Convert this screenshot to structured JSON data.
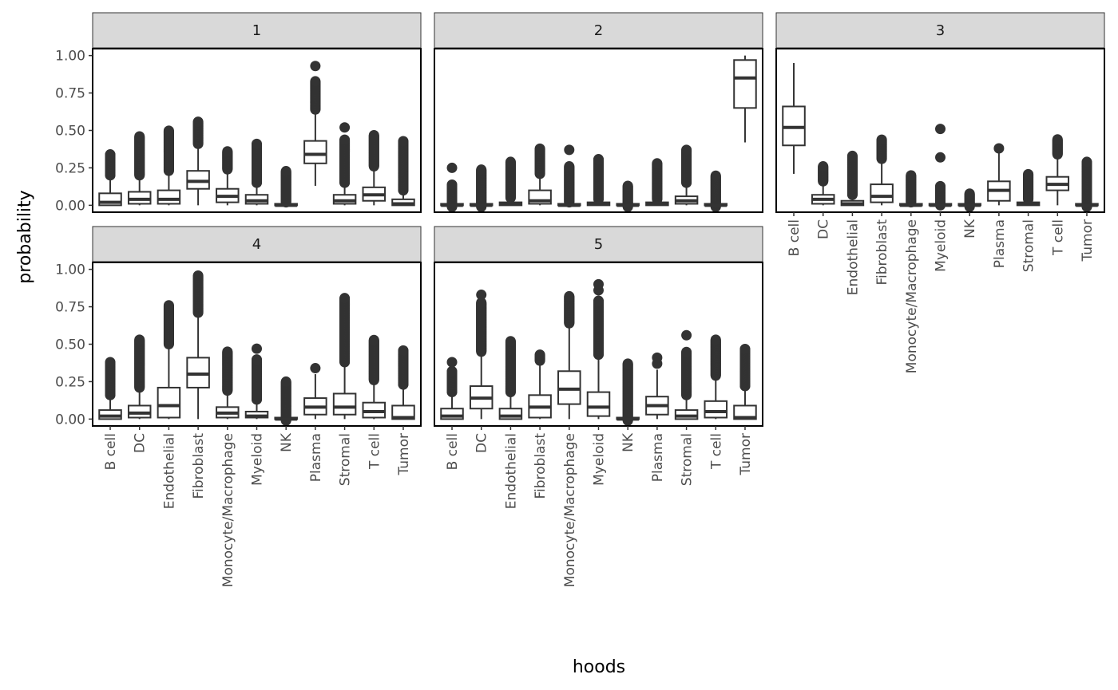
{
  "chart_data": {
    "type": "boxplot",
    "facet_variable_panels": [
      "1",
      "2",
      "3",
      "4",
      "5"
    ],
    "xlabel": "hoods",
    "ylabel": "probability",
    "ylim": [
      -0.046,
      1.046
    ],
    "yticks": [
      "0.00",
      "0.25",
      "0.50",
      "0.75",
      "1.00"
    ],
    "ytick_values": [
      0,
      0.25,
      0.5,
      0.75,
      1.0
    ],
    "categories": [
      "B cell",
      "DC",
      "Endothelial",
      "Fibroblast",
      "Monocyte/Macrophage",
      "Myeloid",
      "NK",
      "Plasma",
      "Stromal",
      "T cell",
      "Tumor"
    ],
    "colors": {
      "box_stroke": "#333333",
      "box_fill": "#ffffff",
      "strip_fill": "#d9d9d9",
      "panel_border": "#000000"
    },
    "grid": false,
    "facets": [
      {
        "label": "1",
        "boxes": [
          {
            "lower": 0.0,
            "q1": 0.0,
            "median": 0.02,
            "q3": 0.08,
            "upper": 0.19,
            "outlier_range": [
              0.2,
              0.34
            ]
          },
          {
            "lower": 0.0,
            "q1": 0.01,
            "median": 0.04,
            "q3": 0.09,
            "upper": 0.19,
            "outlier_range": [
              0.2,
              0.46
            ]
          },
          {
            "lower": 0.0,
            "q1": 0.01,
            "median": 0.04,
            "q3": 0.1,
            "upper": 0.22,
            "outlier_range": [
              0.23,
              0.5
            ]
          },
          {
            "lower": 0.0,
            "q1": 0.11,
            "median": 0.16,
            "q3": 0.23,
            "upper": 0.4,
            "outlier_range": [
              0.41,
              0.56
            ]
          },
          {
            "lower": 0.0,
            "q1": 0.02,
            "median": 0.06,
            "q3": 0.11,
            "upper": 0.23,
            "outlier_range": [
              0.24,
              0.36
            ]
          },
          {
            "lower": 0.0,
            "q1": 0.01,
            "median": 0.03,
            "q3": 0.07,
            "upper": 0.14,
            "outlier_range": [
              0.15,
              0.41
            ]
          },
          {
            "lower": 0.0,
            "q1": 0.0,
            "median": 0.0,
            "q3": 0.01,
            "upper": 0.02,
            "outlier_range": [
              0.02,
              0.23
            ]
          },
          {
            "lower": 0.13,
            "q1": 0.28,
            "median": 0.34,
            "q3": 0.43,
            "upper": 0.63,
            "outlier_range": [
              0.64,
              0.83
            ],
            "outliers": [
              0.93
            ]
          },
          {
            "lower": 0.0,
            "q1": 0.01,
            "median": 0.03,
            "q3": 0.07,
            "upper": 0.14,
            "outlier_range": [
              0.15,
              0.44
            ],
            "outliers": [
              0.52
            ]
          },
          {
            "lower": 0.0,
            "q1": 0.03,
            "median": 0.07,
            "q3": 0.12,
            "upper": 0.25,
            "outlier_range": [
              0.26,
              0.47
            ]
          },
          {
            "lower": 0.0,
            "q1": 0.0,
            "median": 0.01,
            "q3": 0.04,
            "upper": 0.1,
            "outlier_range": [
              0.1,
              0.43
            ]
          }
        ]
      },
      {
        "label": "2",
        "boxes": [
          {
            "lower": 0.0,
            "q1": 0.0,
            "median": 0.0,
            "q3": 0.01,
            "upper": 0.02,
            "outlier_range": [
              -0.01,
              0.14
            ],
            "outliers": [
              0.25
            ]
          },
          {
            "lower": 0.0,
            "q1": 0.0,
            "median": 0.0,
            "q3": 0.01,
            "upper": 0.02,
            "outlier_range": [
              -0.01,
              0.24
            ]
          },
          {
            "lower": 0.0,
            "q1": 0.0,
            "median": 0.01,
            "q3": 0.02,
            "upper": 0.04,
            "outlier_range": [
              0.05,
              0.29
            ]
          },
          {
            "lower": 0.0,
            "q1": 0.01,
            "median": 0.03,
            "q3": 0.1,
            "upper": 0.2,
            "outlier_range": [
              0.21,
              0.38
            ]
          },
          {
            "lower": 0.0,
            "q1": 0.0,
            "median": 0.0,
            "q3": 0.01,
            "upper": 0.02,
            "outlier_range": [
              0.02,
              0.26
            ],
            "outliers": [
              0.37
            ]
          },
          {
            "lower": 0.0,
            "q1": 0.0,
            "median": 0.01,
            "q3": 0.02,
            "upper": 0.04,
            "outlier_range": [
              0.04,
              0.31
            ]
          },
          {
            "lower": 0.0,
            "q1": 0.0,
            "median": 0.0,
            "q3": 0.01,
            "upper": 0.02,
            "outlier_range": [
              -0.01,
              0.13
            ]
          },
          {
            "lower": 0.0,
            "q1": 0.0,
            "median": 0.01,
            "q3": 0.02,
            "upper": 0.04,
            "outlier_range": [
              0.04,
              0.28
            ]
          },
          {
            "lower": 0.0,
            "q1": 0.01,
            "median": 0.03,
            "q3": 0.06,
            "upper": 0.14,
            "outlier_range": [
              0.15,
              0.37
            ]
          },
          {
            "lower": 0.0,
            "q1": 0.0,
            "median": 0.0,
            "q3": 0.01,
            "upper": 0.02,
            "outlier_range": [
              -0.01,
              0.2
            ]
          },
          {
            "lower": 0.42,
            "q1": 0.65,
            "median": 0.85,
            "q3": 0.97,
            "upper": 1.0
          }
        ]
      },
      {
        "label": "3",
        "boxes": [
          {
            "lower": 0.21,
            "q1": 0.4,
            "median": 0.52,
            "q3": 0.66,
            "upper": 0.95
          },
          {
            "lower": 0.0,
            "q1": 0.01,
            "median": 0.04,
            "q3": 0.07,
            "upper": 0.15,
            "outlier_range": [
              0.16,
              0.26
            ]
          },
          {
            "lower": 0.0,
            "q1": 0.0,
            "median": 0.01,
            "q3": 0.03,
            "upper": 0.06,
            "outlier_range": [
              0.07,
              0.33
            ]
          },
          {
            "lower": 0.0,
            "q1": 0.02,
            "median": 0.06,
            "q3": 0.14,
            "upper": 0.3,
            "outlier_range": [
              0.31,
              0.44
            ]
          },
          {
            "lower": 0.0,
            "q1": 0.0,
            "median": 0.0,
            "q3": 0.01,
            "upper": 0.02,
            "outlier_range": [
              0.02,
              0.2
            ]
          },
          {
            "lower": 0.0,
            "q1": 0.0,
            "median": 0.0,
            "q3": 0.01,
            "upper": 0.02,
            "outlier_range": [
              0.0,
              0.13
            ],
            "outliers": [
              0.32,
              0.51
            ]
          },
          {
            "lower": 0.0,
            "q1": 0.0,
            "median": 0.0,
            "q3": 0.01,
            "upper": 0.02,
            "outlier_range": [
              -0.01,
              0.08
            ]
          },
          {
            "lower": 0.0,
            "q1": 0.03,
            "median": 0.1,
            "q3": 0.16,
            "upper": 0.35,
            "outliers": [
              0.38
            ]
          },
          {
            "lower": 0.0,
            "q1": 0.0,
            "median": 0.01,
            "q3": 0.02,
            "upper": 0.04,
            "outlier_range": [
              0.04,
              0.21
            ]
          },
          {
            "lower": 0.0,
            "q1": 0.1,
            "median": 0.14,
            "q3": 0.19,
            "upper": 0.33,
            "outlier_range": [
              0.34,
              0.44
            ]
          },
          {
            "lower": 0.0,
            "q1": 0.0,
            "median": 0.0,
            "q3": 0.01,
            "upper": 0.02,
            "outlier_range": [
              -0.01,
              0.29
            ]
          }
        ]
      },
      {
        "label": "4",
        "boxes": [
          {
            "lower": 0.0,
            "q1": 0.0,
            "median": 0.02,
            "q3": 0.06,
            "upper": 0.15,
            "outlier_range": [
              0.16,
              0.38
            ]
          },
          {
            "lower": 0.0,
            "q1": 0.01,
            "median": 0.04,
            "q3": 0.09,
            "upper": 0.2,
            "outlier_range": [
              0.21,
              0.53
            ]
          },
          {
            "lower": 0.0,
            "q1": 0.01,
            "median": 0.09,
            "q3": 0.21,
            "upper": 0.49,
            "outlier_range": [
              0.5,
              0.76
            ]
          },
          {
            "lower": 0.0,
            "q1": 0.21,
            "median": 0.3,
            "q3": 0.41,
            "upper": 0.7,
            "outlier_range": [
              0.71,
              0.96
            ]
          },
          {
            "lower": 0.0,
            "q1": 0.01,
            "median": 0.04,
            "q3": 0.08,
            "upper": 0.18,
            "outlier_range": [
              0.19,
              0.45
            ]
          },
          {
            "lower": 0.0,
            "q1": 0.01,
            "median": 0.02,
            "q3": 0.05,
            "upper": 0.12,
            "outlier_range": [
              0.13,
              0.4
            ],
            "outliers": [
              0.47
            ]
          },
          {
            "lower": 0.0,
            "q1": 0.0,
            "median": 0.0,
            "q3": 0.01,
            "upper": 0.02,
            "outlier_range": [
              -0.01,
              0.25
            ]
          },
          {
            "lower": 0.0,
            "q1": 0.03,
            "median": 0.08,
            "q3": 0.14,
            "upper": 0.3,
            "outliers": [
              0.34
            ]
          },
          {
            "lower": 0.0,
            "q1": 0.03,
            "median": 0.08,
            "q3": 0.17,
            "upper": 0.37,
            "outlier_range": [
              0.38,
              0.81
            ]
          },
          {
            "lower": 0.0,
            "q1": 0.01,
            "median": 0.05,
            "q3": 0.11,
            "upper": 0.25,
            "outlier_range": [
              0.26,
              0.53
            ]
          },
          {
            "lower": 0.0,
            "q1": 0.0,
            "median": 0.01,
            "q3": 0.09,
            "upper": 0.22,
            "outlier_range": [
              0.23,
              0.46
            ]
          }
        ]
      },
      {
        "label": "5",
        "boxes": [
          {
            "lower": 0.0,
            "q1": 0.0,
            "median": 0.02,
            "q3": 0.07,
            "upper": 0.17,
            "outlier_range": [
              0.18,
              0.32
            ],
            "outliers": [
              0.38
            ]
          },
          {
            "lower": 0.0,
            "q1": 0.07,
            "median": 0.14,
            "q3": 0.22,
            "upper": 0.44,
            "outlier_range": [
              0.45,
              0.78
            ],
            "outliers": [
              0.83
            ]
          },
          {
            "lower": 0.0,
            "q1": 0.0,
            "median": 0.02,
            "q3": 0.07,
            "upper": 0.17,
            "outlier_range": [
              0.18,
              0.52
            ]
          },
          {
            "lower": 0.0,
            "q1": 0.01,
            "median": 0.08,
            "q3": 0.16,
            "upper": 0.38,
            "outlier_range": [
              0.39,
              0.43
            ]
          },
          {
            "lower": 0.0,
            "q1": 0.1,
            "median": 0.2,
            "q3": 0.32,
            "upper": 0.63,
            "outlier_range": [
              0.64,
              0.82
            ]
          },
          {
            "lower": 0.0,
            "q1": 0.02,
            "median": 0.08,
            "q3": 0.18,
            "upper": 0.42,
            "outlier_range": [
              0.43,
              0.79
            ],
            "outliers": [
              0.86,
              0.9
            ]
          },
          {
            "lower": 0.0,
            "q1": 0.0,
            "median": 0.0,
            "q3": 0.01,
            "upper": 0.02,
            "outlier_range": [
              -0.01,
              0.37
            ]
          },
          {
            "lower": 0.0,
            "q1": 0.03,
            "median": 0.09,
            "q3": 0.15,
            "upper": 0.33,
            "outliers": [
              0.37,
              0.41
            ]
          },
          {
            "lower": 0.0,
            "q1": 0.0,
            "median": 0.02,
            "q3": 0.06,
            "upper": 0.15,
            "outlier_range": [
              0.16,
              0.45
            ],
            "outliers": [
              0.56
            ]
          },
          {
            "lower": 0.0,
            "q1": 0.01,
            "median": 0.05,
            "q3": 0.12,
            "upper": 0.28,
            "outlier_range": [
              0.29,
              0.53
            ]
          },
          {
            "lower": 0.0,
            "q1": 0.0,
            "median": 0.01,
            "q3": 0.09,
            "upper": 0.21,
            "outlier_range": [
              0.22,
              0.47
            ]
          }
        ]
      }
    ]
  }
}
